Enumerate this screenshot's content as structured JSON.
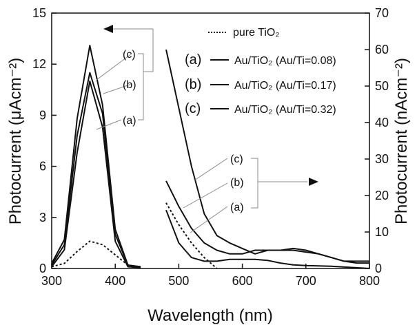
{
  "chart_data": {
    "type": "line",
    "xlabel": "Wavelength (nm)",
    "ylabel_left": "Photocurrent (μAcm⁻²)",
    "ylabel_right": "Photocurrent (nAcm⁻²)",
    "xlim": [
      300,
      800
    ],
    "ylim_left": [
      0,
      15
    ],
    "ylim_right": [
      0,
      70
    ],
    "xticks": [
      "300",
      "400",
      "500",
      "600",
      "700",
      "800"
    ],
    "yticks_left": [
      "0",
      "3",
      "6",
      "9",
      "12",
      "15"
    ],
    "yticks_right": [
      "0",
      "10",
      "20",
      "30",
      "40",
      "50",
      "60",
      "70"
    ],
    "grid": false,
    "legend": {
      "placement": "top-right",
      "entries": [
        {
          "tag": "",
          "label": "pure TiO₂",
          "style": "dotted"
        },
        {
          "tag": "(a)",
          "label": "Au/TiO₂ (Au/Ti=0.08)",
          "style": "solid"
        },
        {
          "tag": "(b)",
          "label": "Au/TiO₂ (Au/Ti=0.17)",
          "style": "solid"
        },
        {
          "tag": "(c)",
          "label": "Au/TiO₂ (Au/Ti=0.32)",
          "style": "solid"
        }
      ]
    },
    "annotations": {
      "left_group_labels": [
        "(c)",
        "(b)",
        "(a)"
      ],
      "right_group_labels": [
        "(c)",
        "(b)",
        "(a)"
      ]
    },
    "series": [
      {
        "key": "pure",
        "axis": "left",
        "style": "dotted",
        "x": [
          300,
          320,
          340,
          360,
          380,
          400,
          420,
          440
        ],
        "y": [
          0.1,
          0.3,
          1.0,
          1.6,
          1.4,
          0.8,
          0.2,
          0.05
        ]
      },
      {
        "key": "a",
        "axis": "left",
        "style": "solid",
        "x": [
          300,
          320,
          340,
          360,
          380,
          400,
          420,
          440
        ],
        "y": [
          0.1,
          1.1,
          6.8,
          11.0,
          8.3,
          1.6,
          0.1,
          0.05
        ]
      },
      {
        "key": "b",
        "axis": "left",
        "style": "solid",
        "x": [
          300,
          320,
          340,
          360,
          380,
          400,
          420,
          440
        ],
        "y": [
          0.2,
          1.4,
          7.8,
          11.5,
          9.1,
          2.0,
          0.2,
          0.1
        ]
      },
      {
        "key": "c",
        "axis": "left",
        "style": "solid",
        "x": [
          300,
          320,
          340,
          360,
          380,
          400,
          420,
          440
        ],
        "y": [
          0.3,
          1.7,
          8.8,
          13.1,
          9.6,
          2.3,
          0.2,
          0.1
        ]
      },
      {
        "key": "pure",
        "axis": "right",
        "style": "dotted",
        "x": [
          480,
          500,
          520,
          540,
          560
        ],
        "y": [
          18,
          12,
          7,
          3,
          0
        ]
      },
      {
        "key": "a",
        "axis": "right",
        "style": "solid",
        "x": [
          480,
          500,
          520,
          540,
          560,
          580,
          600,
          620,
          640,
          660,
          680,
          700,
          720,
          740,
          760,
          780,
          800
        ],
        "y": [
          16,
          7,
          3,
          2,
          2,
          2.5,
          2.5,
          2.5,
          2.2,
          1.5,
          1.0,
          0.8,
          0.7,
          0.6,
          0.4,
          0.2,
          0
        ]
      },
      {
        "key": "b",
        "axis": "right",
        "style": "solid",
        "x": [
          480,
          500,
          520,
          540,
          560,
          580,
          600,
          620,
          640,
          660,
          680,
          700,
          720,
          740,
          760,
          780,
          800
        ],
        "y": [
          24,
          17,
          11,
          7,
          5,
          4,
          4,
          5,
          5,
          5,
          5,
          4.5,
          4,
          3,
          2,
          1.5,
          1.5
        ]
      },
      {
        "key": "c",
        "axis": "right",
        "style": "solid",
        "x": [
          480,
          500,
          520,
          540,
          560,
          580,
          600,
          620,
          640,
          660,
          680,
          700,
          720,
          740,
          760,
          780,
          800
        ],
        "y": [
          60,
          44,
          28,
          15,
          9,
          7,
          5.5,
          4,
          5,
          5,
          5.5,
          5,
          4,
          3,
          2,
          2,
          2
        ]
      }
    ]
  }
}
